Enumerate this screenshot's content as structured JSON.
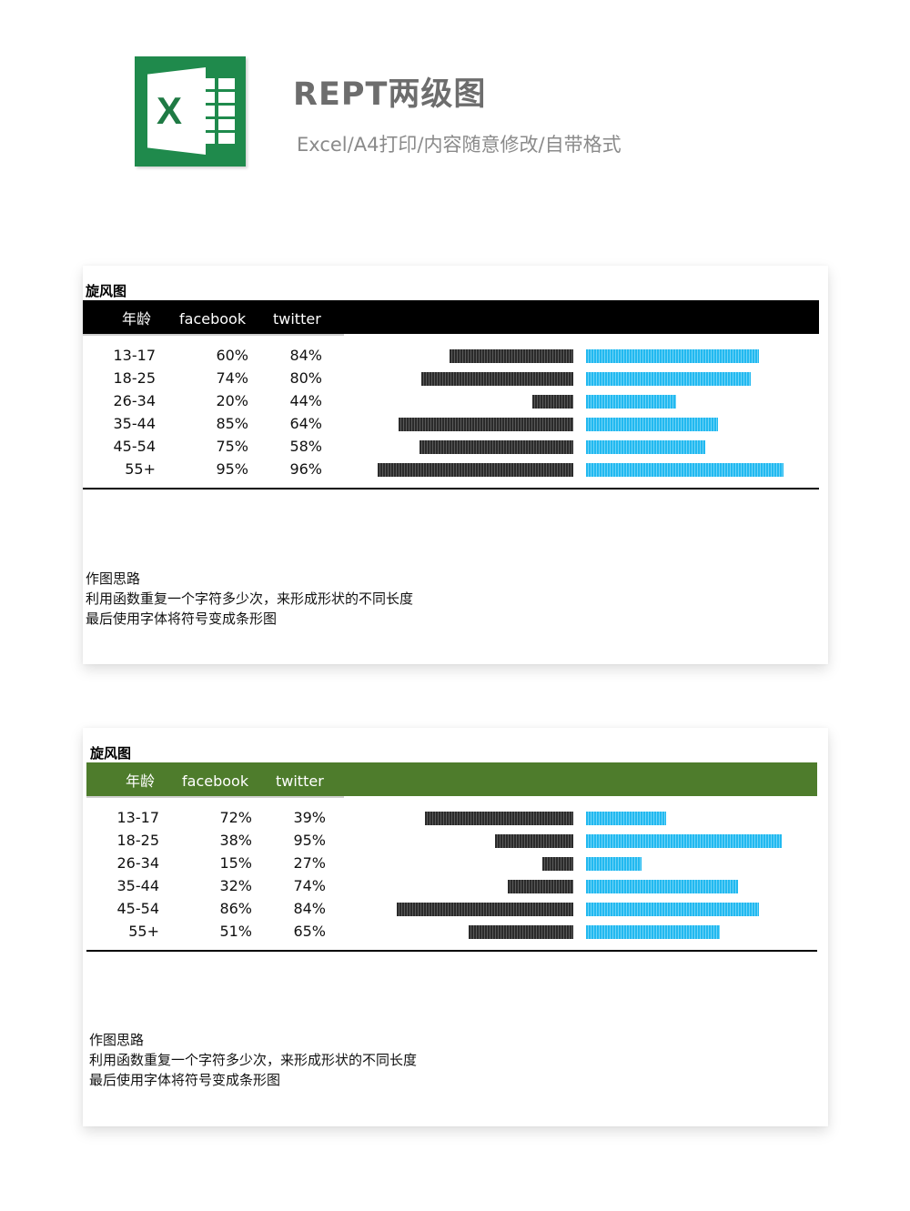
{
  "header": {
    "logo_icon": "excel-logo-icon",
    "logo_letter": "X",
    "title": "REPT两级图",
    "subtitle": "Excel/A4打印/内容随意修改/自带格式"
  },
  "cards": [
    {
      "title": "旋风图",
      "header_color": "#000000",
      "columns": [
        "年龄",
        "facebook",
        "twitter"
      ],
      "rows": [
        {
          "age": "13-17",
          "facebook": "60%",
          "twitter": "84%"
        },
        {
          "age": "18-25",
          "facebook": "74%",
          "twitter": "80%"
        },
        {
          "age": "26-34",
          "facebook": "20%",
          "twitter": "44%"
        },
        {
          "age": "35-44",
          "facebook": "85%",
          "twitter": "64%"
        },
        {
          "age": "45-54",
          "facebook": "75%",
          "twitter": "58%"
        },
        {
          "age": "55+",
          "facebook": "95%",
          "twitter": "96%"
        }
      ],
      "notes": [
        "作图思路",
        "利用函数重复一个字符多少次，来形成形状的不同长度",
        "最后使用字体将符号变成条形图"
      ]
    },
    {
      "title": "旋风图",
      "header_color": "#4e7c2c",
      "columns": [
        "年龄",
        "facebook",
        "twitter"
      ],
      "rows": [
        {
          "age": "13-17",
          "facebook": "72%",
          "twitter": "39%"
        },
        {
          "age": "18-25",
          "facebook": "38%",
          "twitter": "95%"
        },
        {
          "age": "26-34",
          "facebook": "15%",
          "twitter": "27%"
        },
        {
          "age": "35-44",
          "facebook": "32%",
          "twitter": "74%"
        },
        {
          "age": "45-54",
          "facebook": "86%",
          "twitter": "84%"
        },
        {
          "age": "55+",
          "facebook": "51%",
          "twitter": "65%"
        }
      ],
      "notes": [
        "作图思路",
        "利用函数重复一个字符多少次，来形成形状的不同长度",
        "最后使用字体将符号变成条形图"
      ]
    }
  ],
  "colors": {
    "facebook_bar": "#2b2b2b",
    "twitter_bar": "#22b9f0"
  }
}
